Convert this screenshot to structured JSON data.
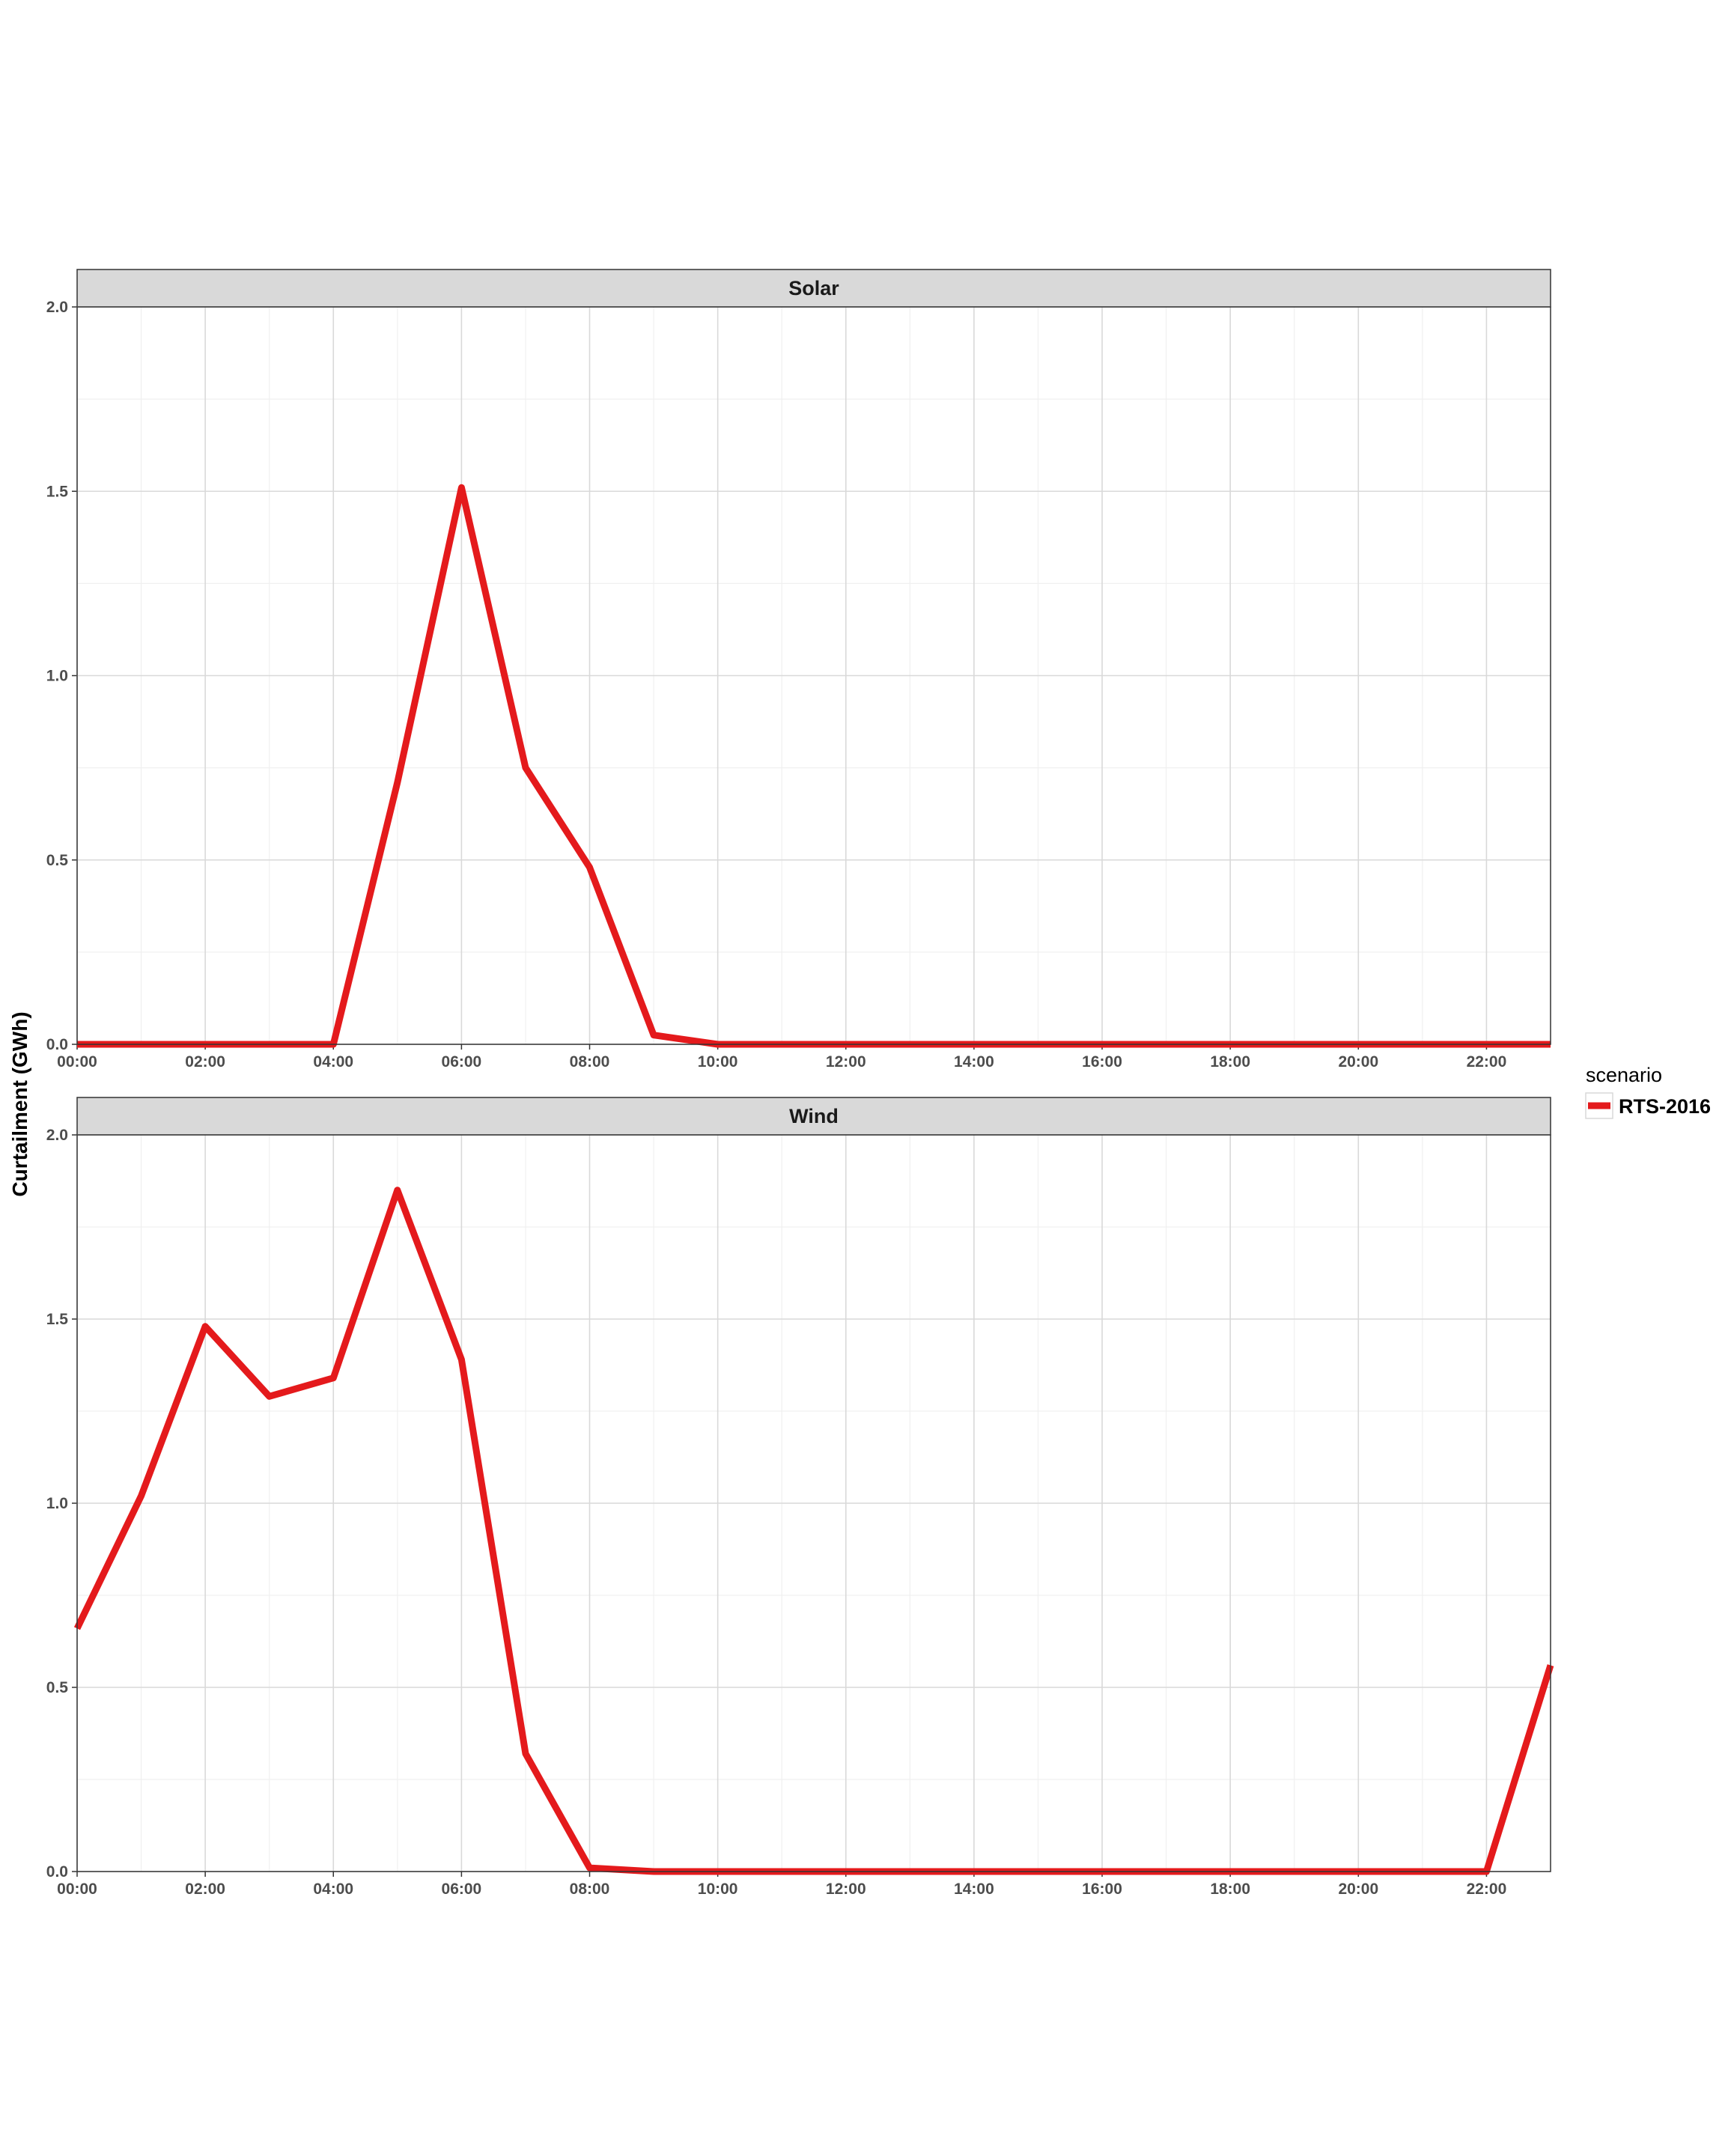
{
  "chart_data": {
    "type": "line",
    "ylabel": "Curtailment (GWh)",
    "xlabel": "",
    "x": [
      "00:00",
      "01:00",
      "02:00",
      "03:00",
      "04:00",
      "05:00",
      "06:00",
      "07:00",
      "08:00",
      "09:00",
      "10:00",
      "11:00",
      "12:00",
      "13:00",
      "14:00",
      "15:00",
      "16:00",
      "17:00",
      "18:00",
      "19:00",
      "20:00",
      "21:00",
      "22:00",
      "23:00"
    ],
    "x_tick_labels": [
      "00:00",
      "02:00",
      "04:00",
      "06:00",
      "08:00",
      "10:00",
      "12:00",
      "14:00",
      "16:00",
      "18:00",
      "20:00",
      "22:00"
    ],
    "y_tick_labels": [
      "0.0",
      "0.5",
      "1.0",
      "1.5",
      "2.0"
    ],
    "ylim": [
      0,
      2.0
    ],
    "grid": true,
    "legend": {
      "title": "scenario",
      "position": "right",
      "entries": [
        {
          "name": "RTS-2016",
          "color": "#e41a1c"
        }
      ]
    },
    "panels": [
      {
        "label": "Solar",
        "series": [
          {
            "name": "RTS-2016",
            "color": "#e41a1c",
            "values": [
              0,
              0,
              0,
              0,
              0,
              0.71,
              1.51,
              0.75,
              0.48,
              0.025,
              0,
              0,
              0,
              0,
              0,
              0,
              0,
              0,
              0,
              0,
              0,
              0,
              0,
              0
            ]
          }
        ]
      },
      {
        "label": "Wind",
        "series": [
          {
            "name": "RTS-2016",
            "color": "#e41a1c",
            "values": [
              0.66,
              1.02,
              1.48,
              1.29,
              1.34,
              1.85,
              1.39,
              0.32,
              0.01,
              0,
              0,
              0,
              0,
              0,
              0,
              0,
              0,
              0,
              0,
              0,
              0,
              0,
              0,
              0.56
            ]
          }
        ]
      }
    ]
  }
}
